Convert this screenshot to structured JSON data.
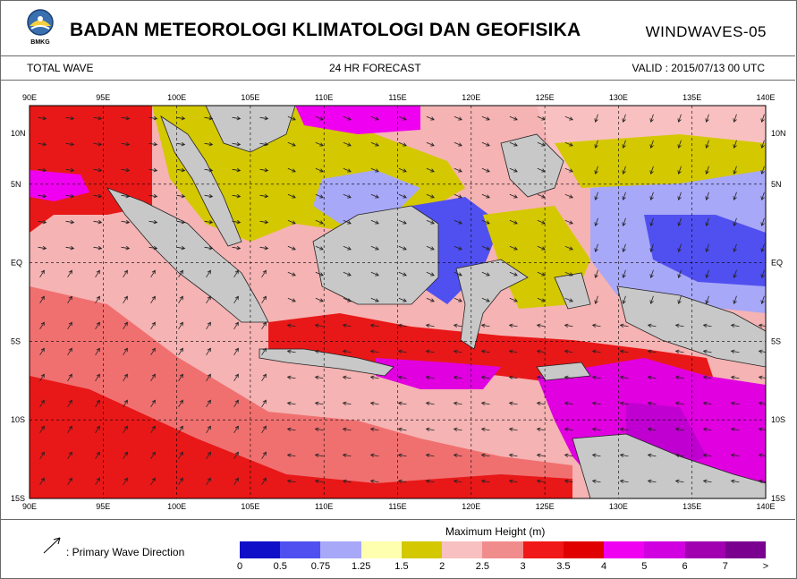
{
  "header": {
    "logo_text": "BMKG",
    "title": "BADAN METEOROLOGI KLIMATOLOGI DAN GEOFISIKA",
    "product": "WINDWAVES-05"
  },
  "subheader": {
    "left": "TOTAL WAVE",
    "middle": "24  HR FORECAST",
    "right": "VALID :  2015/07/13 00   UTC"
  },
  "map": {
    "lon_labels": [
      "90E",
      "95E",
      "100E",
      "105E",
      "110E",
      "115E",
      "120E",
      "125E",
      "130E",
      "135E",
      "140E"
    ],
    "lat_labels": [
      "10N",
      "5N",
      "EQ",
      "5S",
      "10S",
      "15S"
    ],
    "land_color": "#c8c8c8",
    "ocean_base_color": "#f5b3b3"
  },
  "legend": {
    "arrow_label": ":  Primary Wave Direction",
    "title": "Maximum Height (m)",
    "colors": [
      "#1010c8",
      "#5050f0",
      "#a8a8f8",
      "#ffffb0",
      "#d4c800",
      "#f8c0c0",
      "#f08c8c",
      "#f01818",
      "#e00000",
      "#f000f0",
      "#d000e0",
      "#a000b0",
      "#7a0090"
    ],
    "ticks": [
      "0",
      "0.5",
      "0.75",
      "1.25",
      "1.5",
      "2",
      "2.5",
      "3",
      "3.5",
      "4",
      "5",
      "6",
      "7",
      ">"
    ]
  }
}
